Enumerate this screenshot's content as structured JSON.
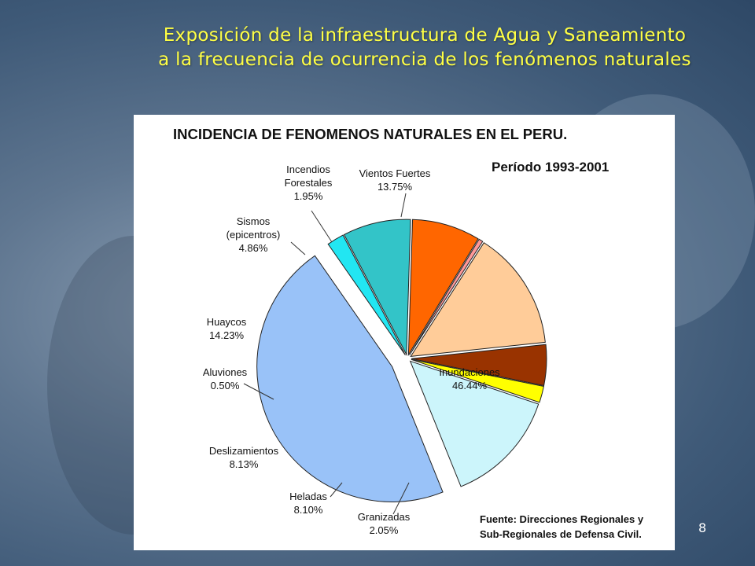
{
  "slide": {
    "title_line1": "Exposición de la infraestructura de Agua y Saneamiento",
    "title_line2": "a la frecuencia de ocurrencia de los fenómenos naturales",
    "page_number": "8"
  },
  "chart_data": {
    "type": "pie",
    "title": "INCIDENCIA DE FENOMENOS NATURALES EN EL PERU.",
    "subtitle": "Período 1993-2001",
    "source_line1": "Fuente: Direcciones Regionales y",
    "source_line2": "Sub-Regionales de Defensa Civil.",
    "slices": [
      {
        "label": "Inundaciones",
        "value": 46.44,
        "value_label": "46.44%",
        "color": "#99c2f8"
      },
      {
        "label": "Granizadas",
        "value": 2.05,
        "value_label": "2.05%",
        "color": "#22e6f2"
      },
      {
        "label": "Heladas",
        "value": 8.1,
        "value_label": "8.10%",
        "color": "#33c4c8"
      },
      {
        "label": "Deslizamientos",
        "value": 8.13,
        "value_label": "8.13%",
        "color": "#ff6600"
      },
      {
        "label": "Aluviones",
        "value": 0.5,
        "value_label": "0.50%",
        "color": "#ff9999"
      },
      {
        "label": "Huaycos",
        "value": 14.23,
        "value_label": "14.23%",
        "color": "#ffcc99"
      },
      {
        "label": "Sismos (epicentros)",
        "value": 4.86,
        "value_label": "4.86%",
        "color": "#993300"
      },
      {
        "label": "Incendios Forestales",
        "value": 1.95,
        "value_label": "1.95%",
        "color": "#ffff00"
      },
      {
        "label": "Vientos Fuertes",
        "value": 13.75,
        "value_label": "13.75%",
        "color": "#ccf5fb"
      }
    ]
  }
}
